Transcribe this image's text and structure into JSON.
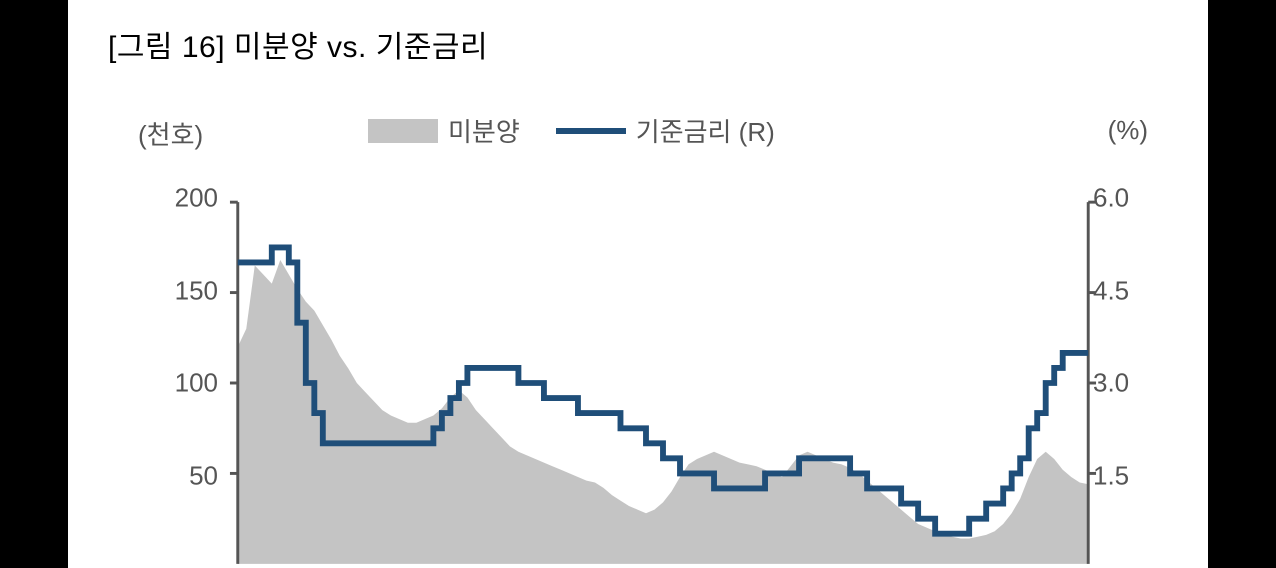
{
  "title": "[그림 16] 미분양 vs. 기준금리",
  "y_left_unit": "(천호)",
  "y_right_unit": "(%)",
  "legend": {
    "area_label": "미분양",
    "line_label": "기준금리 (R)"
  },
  "chart": {
    "type": "dual-axis-area-line",
    "background_color": "#ffffff",
    "page_background": "#000000",
    "area_color": "#c4c4c4",
    "line_color": "#1f4e79",
    "line_width": 6,
    "axis_color": "#555555",
    "axis_width": 3,
    "label_color": "#555555",
    "label_fontsize": 26,
    "title_fontsize": 30,
    "title_color": "#000000",
    "y_left": {
      "min": 0,
      "max": 200,
      "ticks": [
        50,
        100,
        150,
        200
      ]
    },
    "y_right": {
      "min": 0,
      "max": 6.0,
      "ticks": [
        1.5,
        3.0,
        4.5,
        6.0
      ]
    },
    "x": {
      "min": 0,
      "max": 100
    },
    "area_series": [
      [
        0,
        120
      ],
      [
        1,
        130
      ],
      [
        2,
        165
      ],
      [
        3,
        160
      ],
      [
        4,
        155
      ],
      [
        5,
        168
      ],
      [
        6,
        160
      ],
      [
        7,
        152
      ],
      [
        8,
        145
      ],
      [
        9,
        140
      ],
      [
        10,
        132
      ],
      [
        11,
        124
      ],
      [
        12,
        115
      ],
      [
        13,
        108
      ],
      [
        14,
        100
      ],
      [
        15,
        95
      ],
      [
        16,
        90
      ],
      [
        17,
        85
      ],
      [
        18,
        82
      ],
      [
        19,
        80
      ],
      [
        20,
        78
      ],
      [
        21,
        78
      ],
      [
        22,
        80
      ],
      [
        23,
        82
      ],
      [
        24,
        86
      ],
      [
        25,
        92
      ],
      [
        26,
        96
      ],
      [
        27,
        92
      ],
      [
        28,
        85
      ],
      [
        29,
        80
      ],
      [
        30,
        75
      ],
      [
        31,
        70
      ],
      [
        32,
        65
      ],
      [
        33,
        62
      ],
      [
        34,
        60
      ],
      [
        35,
        58
      ],
      [
        36,
        56
      ],
      [
        37,
        54
      ],
      [
        38,
        52
      ],
      [
        39,
        50
      ],
      [
        40,
        48
      ],
      [
        41,
        46
      ],
      [
        42,
        45
      ],
      [
        43,
        42
      ],
      [
        44,
        38
      ],
      [
        45,
        35
      ],
      [
        46,
        32
      ],
      [
        47,
        30
      ],
      [
        48,
        28
      ],
      [
        49,
        30
      ],
      [
        50,
        34
      ],
      [
        51,
        40
      ],
      [
        52,
        48
      ],
      [
        53,
        55
      ],
      [
        54,
        58
      ],
      [
        55,
        60
      ],
      [
        56,
        62
      ],
      [
        57,
        60
      ],
      [
        58,
        58
      ],
      [
        59,
        56
      ],
      [
        60,
        55
      ],
      [
        61,
        54
      ],
      [
        62,
        52
      ],
      [
        63,
        50
      ],
      [
        64,
        48
      ],
      [
        65,
        54
      ],
      [
        66,
        60
      ],
      [
        67,
        62
      ],
      [
        68,
        60
      ],
      [
        69,
        58
      ],
      [
        70,
        56
      ],
      [
        71,
        55
      ],
      [
        72,
        53
      ],
      [
        73,
        50
      ],
      [
        74,
        46
      ],
      [
        75,
        42
      ],
      [
        76,
        38
      ],
      [
        77,
        34
      ],
      [
        78,
        30
      ],
      [
        79,
        26
      ],
      [
        80,
        22
      ],
      [
        81,
        20
      ],
      [
        82,
        18
      ],
      [
        83,
        16
      ],
      [
        84,
        15
      ],
      [
        85,
        14
      ],
      [
        86,
        14
      ],
      [
        87,
        15
      ],
      [
        88,
        16
      ],
      [
        89,
        18
      ],
      [
        90,
        22
      ],
      [
        91,
        28
      ],
      [
        92,
        36
      ],
      [
        93,
        48
      ],
      [
        94,
        58
      ],
      [
        95,
        62
      ],
      [
        96,
        58
      ],
      [
        97,
        52
      ],
      [
        98,
        48
      ],
      [
        99,
        45
      ],
      [
        100,
        44
      ]
    ],
    "line_series": [
      [
        0,
        5.0
      ],
      [
        2,
        5.0
      ],
      [
        3,
        5.0
      ],
      [
        4,
        5.25
      ],
      [
        5,
        5.25
      ],
      [
        6,
        5.0
      ],
      [
        7,
        4.0
      ],
      [
        8,
        3.0
      ],
      [
        9,
        2.5
      ],
      [
        10,
        2.0
      ],
      [
        12,
        2.0
      ],
      [
        15,
        2.0
      ],
      [
        18,
        2.0
      ],
      [
        20,
        2.0
      ],
      [
        22,
        2.0
      ],
      [
        23,
        2.25
      ],
      [
        24,
        2.5
      ],
      [
        25,
        2.75
      ],
      [
        26,
        3.0
      ],
      [
        27,
        3.25
      ],
      [
        28,
        3.25
      ],
      [
        30,
        3.25
      ],
      [
        32,
        3.25
      ],
      [
        33,
        3.0
      ],
      [
        34,
        3.0
      ],
      [
        36,
        2.75
      ],
      [
        38,
        2.75
      ],
      [
        40,
        2.5
      ],
      [
        42,
        2.5
      ],
      [
        44,
        2.5
      ],
      [
        45,
        2.25
      ],
      [
        46,
        2.25
      ],
      [
        48,
        2.0
      ],
      [
        50,
        1.75
      ],
      [
        52,
        1.5
      ],
      [
        54,
        1.5
      ],
      [
        56,
        1.25
      ],
      [
        58,
        1.25
      ],
      [
        60,
        1.25
      ],
      [
        62,
        1.5
      ],
      [
        64,
        1.5
      ],
      [
        66,
        1.75
      ],
      [
        68,
        1.75
      ],
      [
        70,
        1.75
      ],
      [
        72,
        1.5
      ],
      [
        74,
        1.25
      ],
      [
        76,
        1.25
      ],
      [
        78,
        1.0
      ],
      [
        80,
        0.75
      ],
      [
        82,
        0.5
      ],
      [
        84,
        0.5
      ],
      [
        86,
        0.75
      ],
      [
        88,
        1.0
      ],
      [
        90,
        1.25
      ],
      [
        91,
        1.5
      ],
      [
        92,
        1.75
      ],
      [
        93,
        2.25
      ],
      [
        94,
        2.5
      ],
      [
        95,
        3.0
      ],
      [
        96,
        3.25
      ],
      [
        97,
        3.5
      ],
      [
        98,
        3.5
      ],
      [
        99,
        3.5
      ],
      [
        100,
        3.5
      ]
    ]
  }
}
